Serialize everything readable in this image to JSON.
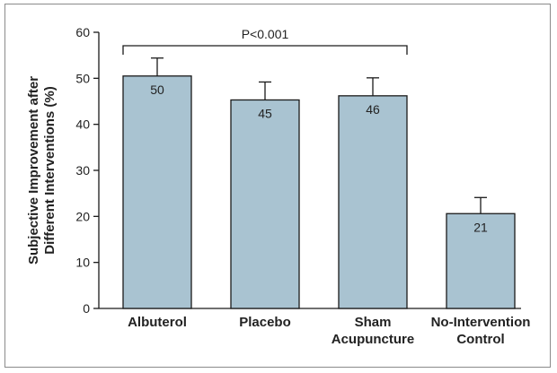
{
  "chart_data": {
    "type": "bar",
    "categories": [
      [
        "Albuterol"
      ],
      [
        "Placebo"
      ],
      [
        "Sham",
        "Acupuncture"
      ],
      [
        "No-Intervention",
        "Control"
      ]
    ],
    "values": [
      50.5,
      45.3,
      46.2,
      20.6
    ],
    "data_labels": [
      "50",
      "45",
      "46",
      "21"
    ],
    "error_upper": [
      54.4,
      49.2,
      50.1,
      24.1
    ],
    "ylabel": [
      "Subjective Improvement after",
      "Different Interventions (%)"
    ],
    "ylim": [
      0,
      60
    ],
    "yticks": [
      0,
      10,
      20,
      30,
      40,
      50,
      60
    ],
    "grid": false,
    "bar_color": "#a9c3d1",
    "bar_edge_color": "#1a1a1a",
    "annotation": {
      "text": "P<0.001",
      "from_category_index": 0,
      "to_category_index": 2
    }
  }
}
